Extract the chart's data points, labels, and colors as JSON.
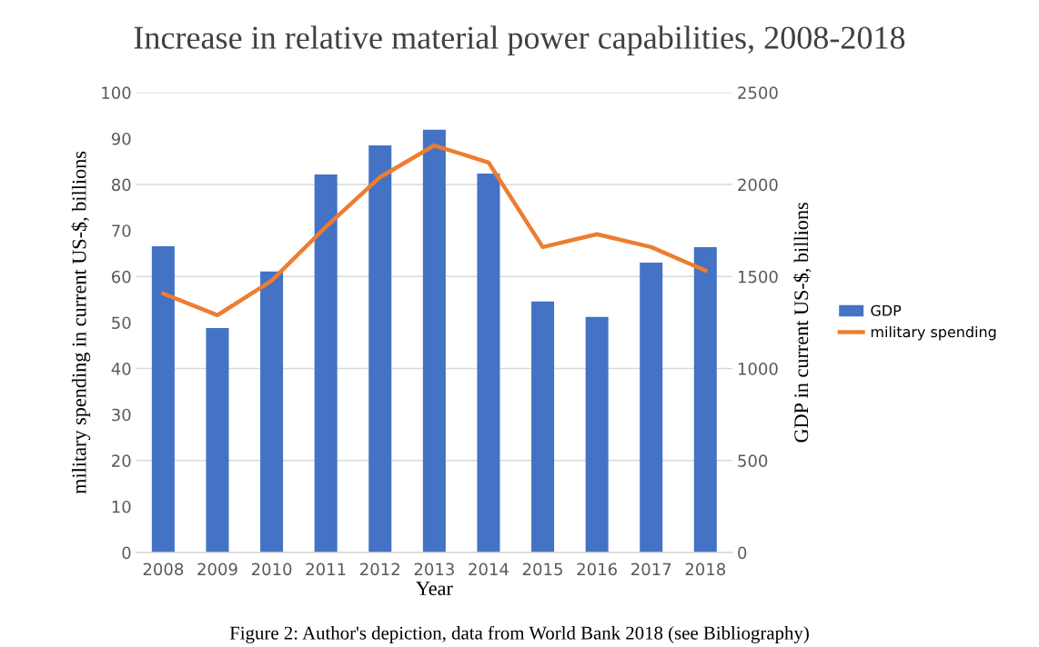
{
  "chart_data": {
    "type": "bar",
    "title": "Increase in relative material power capabilities, 2008-2018",
    "categories": [
      "2008",
      "2009",
      "2010",
      "2011",
      "2012",
      "2013",
      "2014",
      "2015",
      "2016",
      "2017",
      "2018"
    ],
    "series": [
      {
        "name": "GDP",
        "axis": "y2",
        "color": "#4472c4",
        "values": [
          1665,
          1220,
          1527,
          2055,
          2213,
          2298,
          2060,
          1364,
          1280,
          1576,
          1660
        ]
      },
      {
        "name": "military spending",
        "type": "line",
        "axis": "y",
        "color": "#ed7d31",
        "values": [
          56.3,
          51.6,
          59.1,
          70.8,
          81.6,
          88.5,
          84.8,
          66.4,
          69.2,
          66.4,
          61.3
        ]
      }
    ],
    "xlabel": "Year",
    "ylabel": "military spending in current US-$, billions",
    "y2label": "GDP in current US-$, billions",
    "ylim": [
      0,
      100
    ],
    "yticks": [
      0,
      10,
      20,
      30,
      40,
      50,
      60,
      70,
      80,
      90,
      100
    ],
    "y2lim": [
      0,
      2500
    ],
    "y2ticks": [
      0,
      500,
      1000,
      1500,
      2000,
      2500
    ],
    "grid": "y",
    "legend": "right",
    "marker": "none",
    "line_style": "solid",
    "annotations": [
      "Figure 2: Author's depiction, data from World Bank 2018 (see Bibliography)"
    ]
  }
}
